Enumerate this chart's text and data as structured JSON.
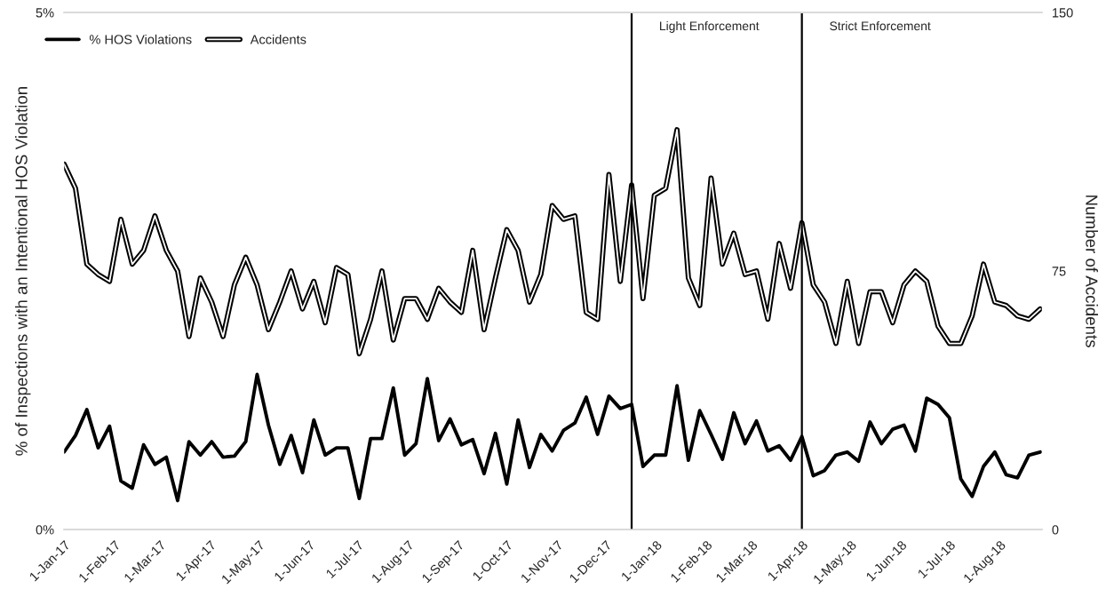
{
  "chart_data": {
    "type": "line",
    "ylabel": "% of Inspections with an Intentional HOS Violation",
    "y2label": "Number of Accidents",
    "x": [
      "2017-01-01",
      "2017-01-08",
      "2017-01-15",
      "2017-01-22",
      "2017-01-29",
      "2017-02-05",
      "2017-02-12",
      "2017-02-19",
      "2017-02-26",
      "2017-03-05",
      "2017-03-12",
      "2017-03-19",
      "2017-03-26",
      "2017-04-02",
      "2017-04-09",
      "2017-04-16",
      "2017-04-23",
      "2017-04-30",
      "2017-05-07",
      "2017-05-14",
      "2017-05-21",
      "2017-05-28",
      "2017-06-04",
      "2017-06-11",
      "2017-06-18",
      "2017-06-25",
      "2017-07-02",
      "2017-07-09",
      "2017-07-16",
      "2017-07-23",
      "2017-07-30",
      "2017-08-06",
      "2017-08-13",
      "2017-08-20",
      "2017-08-27",
      "2017-09-03",
      "2017-09-10",
      "2017-09-17",
      "2017-09-24",
      "2017-10-01",
      "2017-10-08",
      "2017-10-15",
      "2017-10-22",
      "2017-10-29",
      "2017-11-05",
      "2017-11-12",
      "2017-11-19",
      "2017-11-26",
      "2017-12-03",
      "2017-12-10",
      "2017-12-17",
      "2017-12-24",
      "2017-12-31",
      "2018-01-07",
      "2018-01-14",
      "2018-01-21",
      "2018-01-28",
      "2018-02-04",
      "2018-02-11",
      "2018-02-18",
      "2018-02-25",
      "2018-03-04",
      "2018-03-11",
      "2018-03-18",
      "2018-03-25",
      "2018-04-01",
      "2018-04-08",
      "2018-04-15",
      "2018-04-22",
      "2018-04-29",
      "2018-05-06",
      "2018-05-13",
      "2018-05-20",
      "2018-05-27",
      "2018-06-03",
      "2018-06-10",
      "2018-06-17",
      "2018-06-24",
      "2018-07-01",
      "2018-07-08",
      "2018-07-15",
      "2018-07-22",
      "2018-07-29",
      "2018-08-05",
      "2018-08-12",
      "2018-08-19",
      "2018-08-26"
    ],
    "series": [
      {
        "name": "% HOS Violations",
        "color": "#000000",
        "values": [
          0.75,
          0.91,
          1.16,
          0.79,
          1.0,
          0.47,
          0.4,
          0.82,
          0.63,
          0.7,
          0.28,
          0.85,
          0.72,
          0.85,
          0.7,
          0.71,
          0.85,
          1.5,
          1.01,
          0.63,
          0.91,
          0.55,
          1.06,
          0.72,
          0.79,
          0.79,
          0.3,
          0.88,
          0.88,
          1.37,
          0.72,
          0.83,
          1.46,
          0.86,
          1.07,
          0.82,
          0.87,
          0.54,
          0.93,
          0.44,
          1.06,
          0.6,
          0.92,
          0.76,
          0.96,
          1.03,
          1.28,
          0.92,
          1.29,
          1.17,
          1.21,
          0.61,
          0.72,
          0.72,
          1.39,
          0.67,
          1.15,
          0.92,
          0.68,
          1.13,
          0.83,
          1.05,
          0.76,
          0.81,
          0.67,
          0.9,
          0.52,
          0.57,
          0.72,
          0.75,
          0.66,
          1.04,
          0.83,
          0.97,
          1.01,
          0.76,
          1.27,
          1.21,
          1.08,
          0.49,
          0.32,
          0.61,
          0.75,
          0.53,
          0.5,
          0.72,
          0.75
        ]
      },
      {
        "name": "Accidents",
        "color": "#000000",
        "axis": "y2",
        "values": [
          106,
          99,
          77,
          74,
          72,
          90,
          77,
          81,
          91,
          81,
          75,
          56,
          73,
          66,
          56,
          71,
          79,
          71,
          58,
          66,
          75,
          64,
          72,
          60,
          76,
          74,
          51,
          61,
          75,
          55,
          67,
          67,
          61,
          70,
          66,
          63,
          81,
          58,
          73,
          87,
          81,
          66,
          74,
          94,
          90,
          91,
          63,
          61,
          103,
          72,
          100,
          67,
          97,
          99,
          116,
          73,
          65,
          102,
          77,
          86,
          74,
          75,
          61,
          83,
          70,
          89,
          71,
          66,
          54,
          72,
          54,
          69,
          69,
          60,
          71,
          75,
          72,
          59,
          54,
          54,
          62,
          77,
          66,
          65,
          62,
          61,
          64
        ]
      }
    ],
    "xlim": [
      "2017-01-01",
      "2018-08-27"
    ],
    "xticks": [
      {
        "value": "2017-01-01",
        "label": "1-Jan-17"
      },
      {
        "value": "2017-02-01",
        "label": "1-Feb-17"
      },
      {
        "value": "2017-03-01",
        "label": "1-Mar-17"
      },
      {
        "value": "2017-04-01",
        "label": "1-Apr-17"
      },
      {
        "value": "2017-05-01",
        "label": "1-May-17"
      },
      {
        "value": "2017-06-01",
        "label": "1-Jun-17"
      },
      {
        "value": "2017-07-01",
        "label": "1-Jul-17"
      },
      {
        "value": "2017-08-01",
        "label": "1-Aug-17"
      },
      {
        "value": "2017-09-01",
        "label": "1-Sep-17"
      },
      {
        "value": "2017-10-01",
        "label": "1-Oct-17"
      },
      {
        "value": "2017-11-01",
        "label": "1-Nov-17"
      },
      {
        "value": "2017-12-01",
        "label": "1-Dec-17"
      },
      {
        "value": "2018-01-01",
        "label": "1-Jan-18"
      },
      {
        "value": "2018-02-01",
        "label": "1-Feb-18"
      },
      {
        "value": "2018-03-01",
        "label": "1-Mar-18"
      },
      {
        "value": "2018-04-01",
        "label": "1-Apr-18"
      },
      {
        "value": "2018-05-01",
        "label": "1-May-18"
      },
      {
        "value": "2018-06-01",
        "label": "1-Jun-18"
      },
      {
        "value": "2018-07-01",
        "label": "1-Jul-18"
      },
      {
        "value": "2018-08-01",
        "label": "1-Aug-18"
      }
    ],
    "ylim": [
      0,
      5
    ],
    "yticks": [
      {
        "value": 0,
        "label": "0%"
      },
      {
        "value": 5,
        "label": "5%"
      }
    ],
    "y2lim": [
      0,
      150
    ],
    "y2ticks": [
      0,
      75,
      150
    ],
    "ref_lines": [
      {
        "axis": "x",
        "value": "2017-12-17",
        "label": "Light Enforcement",
        "color": "#000000"
      },
      {
        "axis": "x",
        "value": "2018-04-01",
        "label": "Strict Enforcement",
        "color": "#000000"
      }
    ],
    "legend": "top left",
    "line_style": "solid"
  }
}
